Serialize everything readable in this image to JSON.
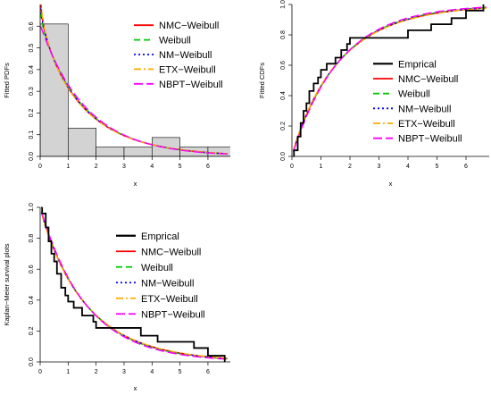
{
  "colors": {
    "empirical": "#000000",
    "nmc": "#ff0000",
    "weibull": "#00cc00",
    "nm": "#0000ff",
    "etx": "#ffaa00",
    "nbpt": "#ff00ff",
    "histogram_fill": "#d3d3d3",
    "grid": "#000000"
  },
  "chart_data": [
    {
      "type": "line",
      "id": "pdf",
      "title": "",
      "xlabel": "x",
      "ylabel": "Fitted PDFs",
      "xlim": [
        0,
        6.8
      ],
      "ylim": [
        0,
        0.7
      ],
      "xticks": [
        "0",
        "1",
        "2",
        "3",
        "4",
        "5",
        "6"
      ],
      "yticks": [
        "0.0",
        "0.1",
        "0.2",
        "0.3",
        "0.4",
        "0.5",
        "0.6"
      ],
      "histogram": {
        "bins": [
          [
            0,
            1
          ],
          [
            1,
            2
          ],
          [
            2,
            3
          ],
          [
            3,
            4
          ],
          [
            4,
            5
          ],
          [
            5,
            6
          ],
          [
            6,
            7
          ]
        ],
        "density": [
          0.61,
          0.13,
          0.043,
          0.043,
          0.087,
          0.043,
          0.043
        ]
      },
      "legend_position": "top-right",
      "series": [
        {
          "name": "NMC−Weibull",
          "key": "nmc",
          "dash": "",
          "shape": 0.95
        },
        {
          "name": "Weibull",
          "key": "weibull",
          "dash": "7,4",
          "shape": 0.97
        },
        {
          "name": "NM−Weibull",
          "key": "nm",
          "dash": "2,3",
          "shape": 0.96
        },
        {
          "name": "ETX−Weibull",
          "key": "etx",
          "dash": "8,3,2,3",
          "shape": 0.94
        },
        {
          "name": "NBPT−Weibull",
          "key": "nbpt",
          "dash": "10,4",
          "shape": 1.0
        }
      ]
    },
    {
      "type": "line",
      "id": "cdf",
      "title": "",
      "xlabel": "x",
      "ylabel": "Fitted CDFs",
      "xlim": [
        0,
        6.8
      ],
      "ylim": [
        0,
        1.0
      ],
      "xticks": [
        "0",
        "1",
        "2",
        "3",
        "4",
        "5",
        "6"
      ],
      "yticks": [
        "0.0",
        "0.2",
        "0.4",
        "0.6",
        "0.8",
        "1.0"
      ],
      "legend_position": "right",
      "empirical": {
        "name": "Emprical",
        "steps_x": [
          0.07,
          0.2,
          0.3,
          0.4,
          0.5,
          0.6,
          0.75,
          0.9,
          1.0,
          1.2,
          1.5,
          1.7,
          1.9,
          2.0,
          2.2,
          2.5,
          3.1,
          3.6,
          4.0,
          4.2,
          4.8,
          5.5,
          6.0,
          6.6
        ],
        "steps_y": [
          0.04,
          0.13,
          0.22,
          0.3,
          0.35,
          0.43,
          0.48,
          0.52,
          0.57,
          0.61,
          0.65,
          0.7,
          0.74,
          0.78,
          0.78,
          0.78,
          0.78,
          0.78,
          0.83,
          0.83,
          0.87,
          0.91,
          0.96,
          1.0
        ]
      },
      "series": [
        {
          "name": "NMC−Weibull",
          "key": "nmc",
          "dash": "",
          "shape": 0.95
        },
        {
          "name": "Weibull",
          "key": "weibull",
          "dash": "7,4",
          "shape": 0.97
        },
        {
          "name": "NM−Weibull",
          "key": "nm",
          "dash": "2,3",
          "shape": 0.96
        },
        {
          "name": "ETX−Weibull",
          "key": "etx",
          "dash": "8,3,2,3",
          "shape": 0.94
        },
        {
          "name": "NBPT−Weibull",
          "key": "nbpt",
          "dash": "10,4",
          "shape": 1.0
        }
      ]
    },
    {
      "type": "line",
      "id": "km",
      "title": "",
      "xlabel": "x",
      "ylabel": "Kaplan−Meier survival plots",
      "xlim": [
        0,
        6.8
      ],
      "ylim": [
        0,
        1.0
      ],
      "xticks": [
        "0",
        "1",
        "2",
        "3",
        "4",
        "5",
        "6"
      ],
      "yticks": [
        "0.0",
        "0.2",
        "0.4",
        "0.6",
        "0.8",
        "1.0"
      ],
      "legend_position": "top-right",
      "empirical": {
        "name": "Emprical",
        "steps_x": [
          0.07,
          0.2,
          0.3,
          0.4,
          0.5,
          0.6,
          0.75,
          0.9,
          1.0,
          1.2,
          1.5,
          1.7,
          1.9,
          2.0,
          2.2,
          2.5,
          3.1,
          3.6,
          4.0,
          4.2,
          4.8,
          5.5,
          6.0,
          6.6
        ],
        "steps_y": [
          0.96,
          0.87,
          0.78,
          0.7,
          0.65,
          0.57,
          0.48,
          0.43,
          0.39,
          0.35,
          0.3,
          0.3,
          0.26,
          0.22,
          0.22,
          0.22,
          0.22,
          0.17,
          0.17,
          0.13,
          0.13,
          0.09,
          0.04,
          0.0
        ]
      },
      "series": [
        {
          "name": "NMC−Weibull",
          "key": "nmc",
          "dash": "",
          "shape": 0.95
        },
        {
          "name": "Weibull",
          "key": "weibull",
          "dash": "7,4",
          "shape": 0.97
        },
        {
          "name": "NM−Weibull",
          "key": "nm",
          "dash": "2,3",
          "shape": 0.96
        },
        {
          "name": "ETX−Weibull",
          "key": "etx",
          "dash": "8,3,2,3",
          "shape": 0.94
        },
        {
          "name": "NBPT−Weibull",
          "key": "nbpt",
          "dash": "10,4",
          "shape": 1.0
        }
      ]
    }
  ]
}
